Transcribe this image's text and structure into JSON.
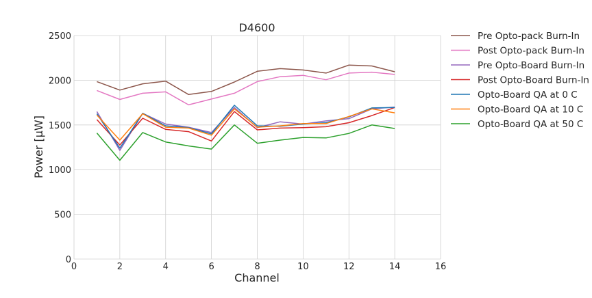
{
  "chart_data": {
    "type": "line",
    "title": "D4600",
    "xlabel": "Channel",
    "ylabel": "Power [μW]",
    "xlim": [
      0,
      16
    ],
    "ylim": [
      0,
      2500
    ],
    "xticks": [
      0,
      2,
      4,
      6,
      8,
      10,
      12,
      14,
      16
    ],
    "yticks": [
      0,
      500,
      1000,
      1500,
      2000,
      2500
    ],
    "grid": true,
    "legend_position": "outside-right",
    "x": [
      1,
      2,
      3,
      4,
      5,
      6,
      7,
      8,
      9,
      10,
      11,
      12,
      13,
      14
    ],
    "series": [
      {
        "name": "Pre Opto-pack Burn-In",
        "color": "#8c564b",
        "values": [
          1985,
          1890,
          1960,
          1990,
          1840,
          1875,
          1980,
          2100,
          2130,
          2115,
          2080,
          2170,
          2160,
          2095
        ]
      },
      {
        "name": "Post Opto-pack Burn-In",
        "color": "#e377c2",
        "values": [
          1885,
          1785,
          1855,
          1870,
          1725,
          1790,
          1855,
          1985,
          2040,
          2055,
          2005,
          2080,
          2090,
          2065
        ]
      },
      {
        "name": "Pre Opto-Board Burn-In",
        "color": "#9467bd",
        "values": [
          1650,
          1215,
          1630,
          1510,
          1475,
          1415,
          1695,
          1470,
          1535,
          1510,
          1545,
          1570,
          1680,
          1700
        ]
      },
      {
        "name": "Post Opto-Board Burn-In",
        "color": "#d62728",
        "values": [
          1560,
          1275,
          1575,
          1450,
          1425,
          1320,
          1650,
          1445,
          1465,
          1470,
          1480,
          1525,
          1605,
          1695
        ]
      },
      {
        "name": "Opto-Board QA at 0 C",
        "color": "#1f77b4",
        "values": [
          1625,
          1240,
          1630,
          1490,
          1470,
          1400,
          1720,
          1490,
          1485,
          1510,
          1525,
          1590,
          1690,
          1695
        ]
      },
      {
        "name": "Opto-Board QA at 10 C",
        "color": "#ff7f0e",
        "values": [
          1610,
          1330,
          1625,
          1475,
          1465,
          1385,
          1680,
          1475,
          1490,
          1515,
          1515,
          1595,
          1680,
          1635
        ]
      },
      {
        "name": "Opto-Board QA at 50 C",
        "color": "#2ca02c",
        "values": [
          1410,
          1105,
          1415,
          1310,
          1265,
          1230,
          1500,
          1295,
          1330,
          1360,
          1355,
          1405,
          1500,
          1460
        ]
      }
    ]
  }
}
